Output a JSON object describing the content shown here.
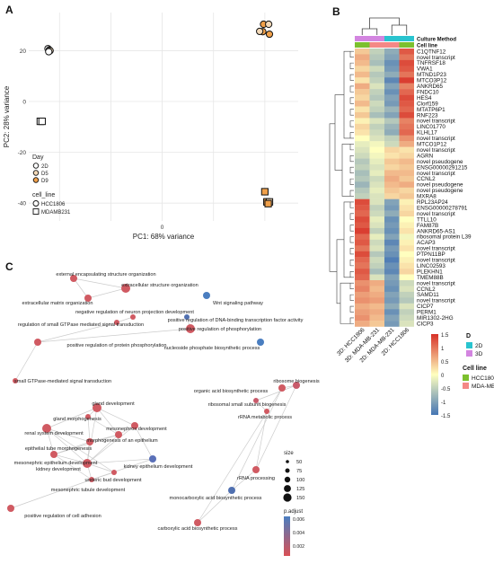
{
  "panel_labels": {
    "a": "A",
    "b": "B",
    "c": "C"
  },
  "chart_data": [
    {
      "type": "scatter",
      "panel": "A",
      "xlabel": "PC1: 68% variance",
      "ylabel": "PC2: 28% variance",
      "xlim": [
        -52,
        53
      ],
      "ylim": [
        -47,
        35
      ],
      "xticks": [
        -40,
        -20,
        0,
        20,
        40
      ],
      "yticks": [
        -40,
        -20,
        0,
        20
      ],
      "grid": true,
      "legend": {
        "day_title": "Day",
        "day": [
          "2D",
          "D5",
          "D9"
        ],
        "cell_title": "cell_line",
        "cell": [
          "HCC1806",
          "MDAMB231"
        ]
      },
      "points": [
        {
          "x": -44.5,
          "y": 20.8,
          "day": "2D",
          "cell": "HCC1806"
        },
        {
          "x": -44.0,
          "y": 20.3,
          "day": "2D",
          "cell": "HCC1806"
        },
        {
          "x": -43.7,
          "y": 20.0,
          "day": "D5",
          "cell": "HCC1806"
        },
        {
          "x": -44.2,
          "y": 19.6,
          "day": "2D",
          "cell": "HCC1806"
        },
        {
          "x": -47.5,
          "y": -7.8,
          "day": "2D",
          "cell": "MDAMB231"
        },
        {
          "x": -46.8,
          "y": -7.8,
          "day": "2D",
          "cell": "MDAMB231"
        },
        {
          "x": 39.5,
          "y": 30.4,
          "day": "D9",
          "cell": "HCC1806"
        },
        {
          "x": 41.5,
          "y": 30.4,
          "day": "D5",
          "cell": "HCC1806"
        },
        {
          "x": 39.2,
          "y": 27.5,
          "day": "D9",
          "cell": "HCC1806"
        },
        {
          "x": 41.8,
          "y": 26.5,
          "day": "D9",
          "cell": "HCC1806"
        },
        {
          "x": 38.0,
          "y": 27.6,
          "day": "D5",
          "cell": "HCC1806"
        },
        {
          "x": 40.0,
          "y": -35.5,
          "day": "D9",
          "cell": "MDAMB231"
        },
        {
          "x": 40.8,
          "y": -39.5,
          "day": "D9",
          "cell": "MDAMB231"
        },
        {
          "x": 41.8,
          "y": -39.5,
          "day": "D5",
          "cell": "MDAMB231"
        },
        {
          "x": 41.3,
          "y": -40.2,
          "day": "D9",
          "cell": "MDAMB231"
        }
      ]
    },
    {
      "type": "heatmap",
      "panel": "B",
      "columns": [
        "3D_HCC1806",
        "3D_MDA-MB-231",
        "2D_MDA-MB-231",
        "2D_HCC1806"
      ],
      "annotation_labels": [
        "Culture Method",
        "Cell line"
      ],
      "rows": [
        "C1QTNF12",
        "novel transcript",
        "TNFRSF18",
        "VWA1",
        "MTND1P23",
        "MTCO3P12",
        "ANKRD65",
        "FNDC10",
        "HES4",
        "Clorf159",
        "MTATP6P1",
        "RNF223",
        "novel transcript",
        "LINC01770",
        "KLHL17",
        "novel transcript",
        "MTCO1P12",
        "novel transcript",
        "AGRN",
        "novel pseudogene",
        "ENSG00000291215",
        "novel transcript",
        "CCNL2",
        "novel pseudogene",
        "novel pseudogene",
        "MXRA8",
        "RPL23AP24",
        "ENSG00000278791",
        "novel transcript",
        "TTLL10",
        "FAM87B",
        "ANKRD65-AS1",
        "ribosomal protein L39",
        "ACAP3",
        "novel transcript",
        "PTPN11BP",
        "novel transcript",
        "LINC02593",
        "PLEKHN1",
        "TMEM88B",
        "novel transcript",
        "CCNL2",
        "SAMD11",
        "novel transcript",
        "CICP7",
        "PERM1",
        "MIR1302-2HG",
        "CICP3"
      ],
      "values": [
        [
          0.4,
          -0.5,
          -0.9,
          1.2
        ],
        [
          0.6,
          -0.6,
          -1.0,
          1.0
        ],
        [
          0.5,
          -0.7,
          -1.2,
          1.3
        ],
        [
          0.3,
          -0.4,
          -1.1,
          1.2
        ],
        [
          0.5,
          -0.6,
          -0.9,
          1.0
        ],
        [
          0.2,
          -0.5,
          -1.3,
          1.4
        ],
        [
          0.6,
          -0.3,
          -1.0,
          0.9
        ],
        [
          0.4,
          -0.5,
          -1.2,
          1.1
        ],
        [
          0.3,
          -0.6,
          -1.0,
          1.3
        ],
        [
          0.5,
          -0.4,
          -1.1,
          1.2
        ],
        [
          0.2,
          -0.5,
          -0.8,
          1.1
        ],
        [
          0.4,
          -0.7,
          -1.0,
          1.3
        ],
        [
          0.1,
          -0.3,
          -0.6,
          0.9
        ],
        [
          0.3,
          -0.5,
          -0.8,
          1.0
        ],
        [
          0.2,
          -0.4,
          -0.9,
          1.1
        ],
        [
          0.0,
          -0.3,
          -0.5,
          0.8
        ],
        [
          -0.2,
          -0.1,
          -0.4,
          0.6
        ],
        [
          -0.3,
          0.0,
          0.3,
          0.2
        ],
        [
          -0.4,
          -0.1,
          0.2,
          0.3
        ],
        [
          -0.6,
          -0.2,
          0.4,
          0.5
        ],
        [
          -0.5,
          -0.3,
          0.3,
          0.4
        ],
        [
          -0.7,
          -0.2,
          0.5,
          0.5
        ],
        [
          -0.6,
          -0.4,
          0.6,
          0.4
        ],
        [
          -0.8,
          -0.3,
          0.5,
          0.6
        ],
        [
          -0.6,
          -0.2,
          0.4,
          0.3
        ],
        [
          -0.5,
          -0.3,
          0.3,
          0.4
        ],
        [
          1.3,
          -0.3,
          -1.0,
          0.1
        ],
        [
          1.2,
          -0.5,
          -1.1,
          0.2
        ],
        [
          1.1,
          -0.4,
          -0.9,
          0.3
        ],
        [
          1.3,
          -0.2,
          -1.2,
          0.0
        ],
        [
          1.2,
          -0.3,
          -1.1,
          0.1
        ],
        [
          1.4,
          -0.5,
          -1.2,
          0.2
        ],
        [
          1.1,
          -0.2,
          -1.0,
          -0.1
        ],
        [
          1.2,
          -0.4,
          -1.3,
          0.1
        ],
        [
          1.0,
          -0.3,
          -1.1,
          0.2
        ],
        [
          1.3,
          -0.6,
          -1.2,
          0.0
        ],
        [
          1.1,
          -0.4,
          -1.4,
          0.1
        ],
        [
          1.0,
          -0.5,
          -1.2,
          0.2
        ],
        [
          1.2,
          -0.7,
          -1.3,
          0.3
        ],
        [
          1.1,
          -0.3,
          -1.0,
          0.0
        ],
        [
          0.8,
          0.6,
          -1.1,
          -0.4
        ],
        [
          0.9,
          0.5,
          -1.2,
          -0.3
        ],
        [
          0.7,
          0.6,
          -1.0,
          -0.5
        ],
        [
          0.8,
          0.7,
          -1.1,
          -0.6
        ],
        [
          0.6,
          0.5,
          -0.9,
          -0.3
        ],
        [
          0.7,
          0.6,
          -1.2,
          -0.5
        ],
        [
          0.8,
          0.5,
          -1.0,
          -0.4
        ],
        [
          0.6,
          0.4,
          -1.1,
          -0.3
        ]
      ],
      "scale_ticks": [
        "1.5",
        "1",
        "0.5",
        "0",
        "-0.5",
        "-1",
        "-1.5"
      ],
      "legend": {
        "d_title": "D",
        "d_items": [
          {
            "label": "2D",
            "color": "#29c4cf"
          },
          {
            "label": "3D",
            "color": "#d385e0"
          }
        ],
        "cell_title": "Cell line",
        "cell_items": [
          {
            "label": "HCC1806",
            "color": "#7cc02e"
          },
          {
            "label": "MDA-MB-231",
            "color": "#f48886"
          }
        ]
      },
      "colors": {
        "high": "#d73027",
        "mid": "#ffffbf",
        "low": "#4575b4"
      }
    },
    {
      "type": "network",
      "panel": "C",
      "size_legend": {
        "title": "size",
        "values": [
          "50",
          "75",
          "100",
          "125",
          "150"
        ]
      },
      "color_legend": {
        "title": "p.adjust",
        "ticks": [
          "0.006",
          "0.004",
          "0.002"
        ]
      },
      "nodes": [
        {
          "label": "external encapsulating structure organization",
          "r": 4,
          "c": "#d05a62"
        },
        {
          "label": "extracellular structure organization",
          "r": 5,
          "c": "#d05a62"
        },
        {
          "label": "extracellular matrix organization",
          "r": 4,
          "c": "#d05a62"
        },
        {
          "label": "Wnt signaling pathway",
          "r": 4,
          "c": "#4a7ec0"
        },
        {
          "label": "negative regulation of neuron projection development",
          "r": 3,
          "c": "#d05a62"
        },
        {
          "label": "regulation of small GTPase mediated signal transduction",
          "r": 3,
          "c": "#d05a62"
        },
        {
          "label": "positive regulation of DNA-binding transcription factor activity",
          "r": 3,
          "c": "#5070b0"
        },
        {
          "label": "positive regulation of phosphorylation",
          "r": 5,
          "c": "#d05a62"
        },
        {
          "label": "positive regulation of protein phosphorylation",
          "r": 4,
          "c": "#d05a62"
        },
        {
          "label": "nucleoside phosphate biosynthetic process",
          "r": 4,
          "c": "#4a7ec0"
        },
        {
          "label": "small GTPase-mediated signal transduction",
          "r": 3,
          "c": "#d05a62"
        },
        {
          "label": "ribosome biogenesis",
          "r": 4,
          "c": "#c85a6a"
        },
        {
          "label": "organic acid biosynthetic process",
          "r": 4,
          "c": "#d05a62"
        },
        {
          "label": "gland development",
          "r": 5,
          "c": "#d05a62"
        },
        {
          "label": "gland morphogenesis",
          "r": 3,
          "c": "#d05a62"
        },
        {
          "label": "mesonephros development",
          "r": 4,
          "c": "#d05a62"
        },
        {
          "label": "renal system development",
          "r": 5,
          "c": "#d05a62"
        },
        {
          "label": "morphogenesis of an epithelium",
          "r": 4,
          "c": "#d05a62"
        },
        {
          "label": "epithelial tube morphogenesis",
          "r": 4,
          "c": "#d05a62"
        },
        {
          "label": "mesonephric epithelium development",
          "r": 4,
          "c": "#d05a62"
        },
        {
          "label": "kidney epithelium development",
          "r": 4,
          "c": "#5a70b8"
        },
        {
          "label": "kidney development",
          "r": 5,
          "c": "#d05a62"
        },
        {
          "label": "ureteric bud development",
          "r": 3,
          "c": "#d05a62"
        },
        {
          "label": "mesonephric tubule development",
          "r": 3,
          "c": "#d05a62"
        },
        {
          "label": "ribosomal small subunit biogenesis",
          "r": 3,
          "c": "#c85a6a"
        },
        {
          "label": "rRNA metabolic process",
          "r": 3,
          "c": "#d05a62"
        },
        {
          "label": "rRNA processing",
          "r": 4,
          "c": "#d05a62"
        },
        {
          "label": "monocarboxylic acid biosynthetic process",
          "r": 4,
          "c": "#5070b0"
        },
        {
          "label": "carboxylic acid biosynthetic process",
          "r": 4,
          "c": "#d05a62"
        },
        {
          "label": "positive regulation of cell adhesion",
          "r": 4,
          "c": "#d05a62"
        }
      ]
    }
  ]
}
